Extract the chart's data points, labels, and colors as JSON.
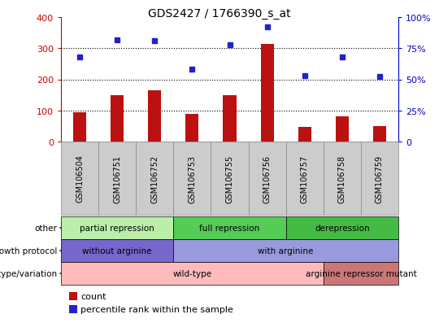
{
  "title": "GDS2427 / 1766390_s_at",
  "samples": [
    "GSM106504",
    "GSM106751",
    "GSM106752",
    "GSM106753",
    "GSM106755",
    "GSM106756",
    "GSM106757",
    "GSM106758",
    "GSM106759"
  ],
  "counts": [
    95,
    150,
    165,
    90,
    148,
    315,
    47,
    80,
    50
  ],
  "percentile_ranks": [
    68,
    82,
    81,
    58,
    78,
    92,
    53,
    68,
    52
  ],
  "ylim_left": [
    0,
    400
  ],
  "ylim_right": [
    0,
    100
  ],
  "yticks_left": [
    0,
    100,
    200,
    300,
    400
  ],
  "yticks_right": [
    0,
    25,
    50,
    75,
    100
  ],
  "bar_color": "#bb1111",
  "dot_color": "#2222cc",
  "groups_other": [
    {
      "label": "partial repression",
      "start": 0,
      "end": 3,
      "color": "#bbeeaa"
    },
    {
      "label": "full repression",
      "start": 3,
      "end": 6,
      "color": "#55cc55"
    },
    {
      "label": "derepression",
      "start": 6,
      "end": 9,
      "color": "#44bb44"
    }
  ],
  "groups_growth": [
    {
      "label": "without arginine",
      "start": 0,
      "end": 3,
      "color": "#7766cc"
    },
    {
      "label": "with arginine",
      "start": 3,
      "end": 9,
      "color": "#9999dd"
    }
  ],
  "groups_genotype": [
    {
      "label": "wild-type",
      "start": 0,
      "end": 7,
      "color": "#ffbbbb"
    },
    {
      "label": "arginine repressor mutant",
      "start": 7,
      "end": 9,
      "color": "#cc7777"
    }
  ],
  "row_labels": [
    "other",
    "growth protocol",
    "genotype/variation"
  ],
  "legend_items": [
    {
      "label": "count",
      "color": "#bb1111"
    },
    {
      "label": "percentile rank within the sample",
      "color": "#2222cc"
    }
  ],
  "left_axis_color": "#cc0000",
  "right_axis_color": "#0000cc",
  "tick_bg_color": "#cccccc",
  "tick_border_color": "#888888"
}
